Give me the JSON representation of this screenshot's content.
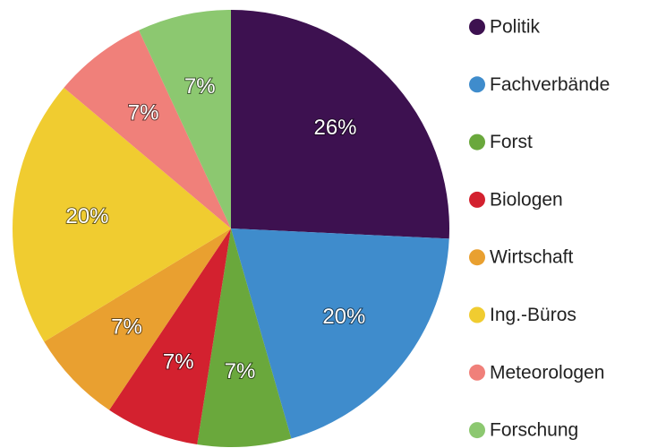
{
  "chart_data": {
    "type": "pie",
    "categories": [
      "Politik",
      "Fachverbände",
      "Forst",
      "Biologen",
      "Wirtschaft",
      "Ing.-Büros",
      "Meteorologen",
      "Forschung"
    ],
    "values": [
      26,
      20,
      7,
      7,
      7,
      20,
      7,
      7
    ],
    "value_labels": [
      "26%",
      "20%",
      "7%",
      "7%",
      "7%",
      "20%",
      "7%",
      "7%"
    ],
    "colors": [
      "#3d1150",
      "#3f8ccc",
      "#6aa83c",
      "#d3212f",
      "#e9a030",
      "#f0cc30",
      "#f0807a",
      "#8cc870"
    ]
  }
}
